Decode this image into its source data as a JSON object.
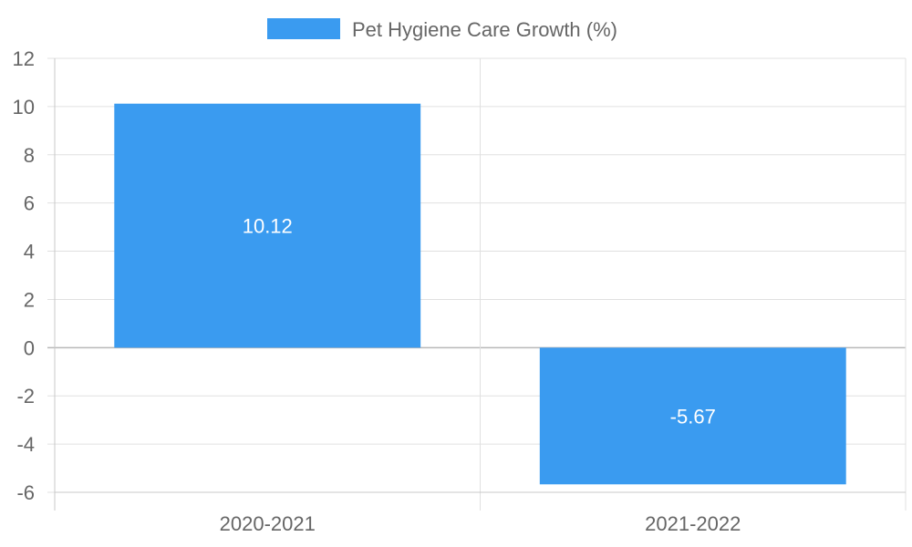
{
  "chart_data": {
    "type": "bar",
    "title": "",
    "xlabel": "",
    "ylabel": "",
    "categories": [
      "2020-2021",
      "2021-2022"
    ],
    "series": [
      {
        "name": "Pet Hygiene Care Growth (%)",
        "values": [
          10.12,
          -5.67
        ],
        "color": "#3a9bf0"
      }
    ],
    "data_labels": [
      "10.12",
      "-5.67"
    ],
    "ylim": [
      -6,
      12
    ],
    "yticks": [
      -6,
      -4,
      -2,
      0,
      2,
      4,
      6,
      8,
      10,
      12
    ],
    "ytick_labels": [
      "-6",
      "-4",
      "-2",
      "0",
      "2",
      "4",
      "6",
      "8",
      "10",
      "12"
    ],
    "grid": true,
    "legend_position": "top-center"
  },
  "colors": {
    "grid": "#e0e0e0",
    "axis": "#c8c8c8",
    "zero_line": "#b8b8b8",
    "text": "#666666",
    "data_label": "#ffffff"
  }
}
